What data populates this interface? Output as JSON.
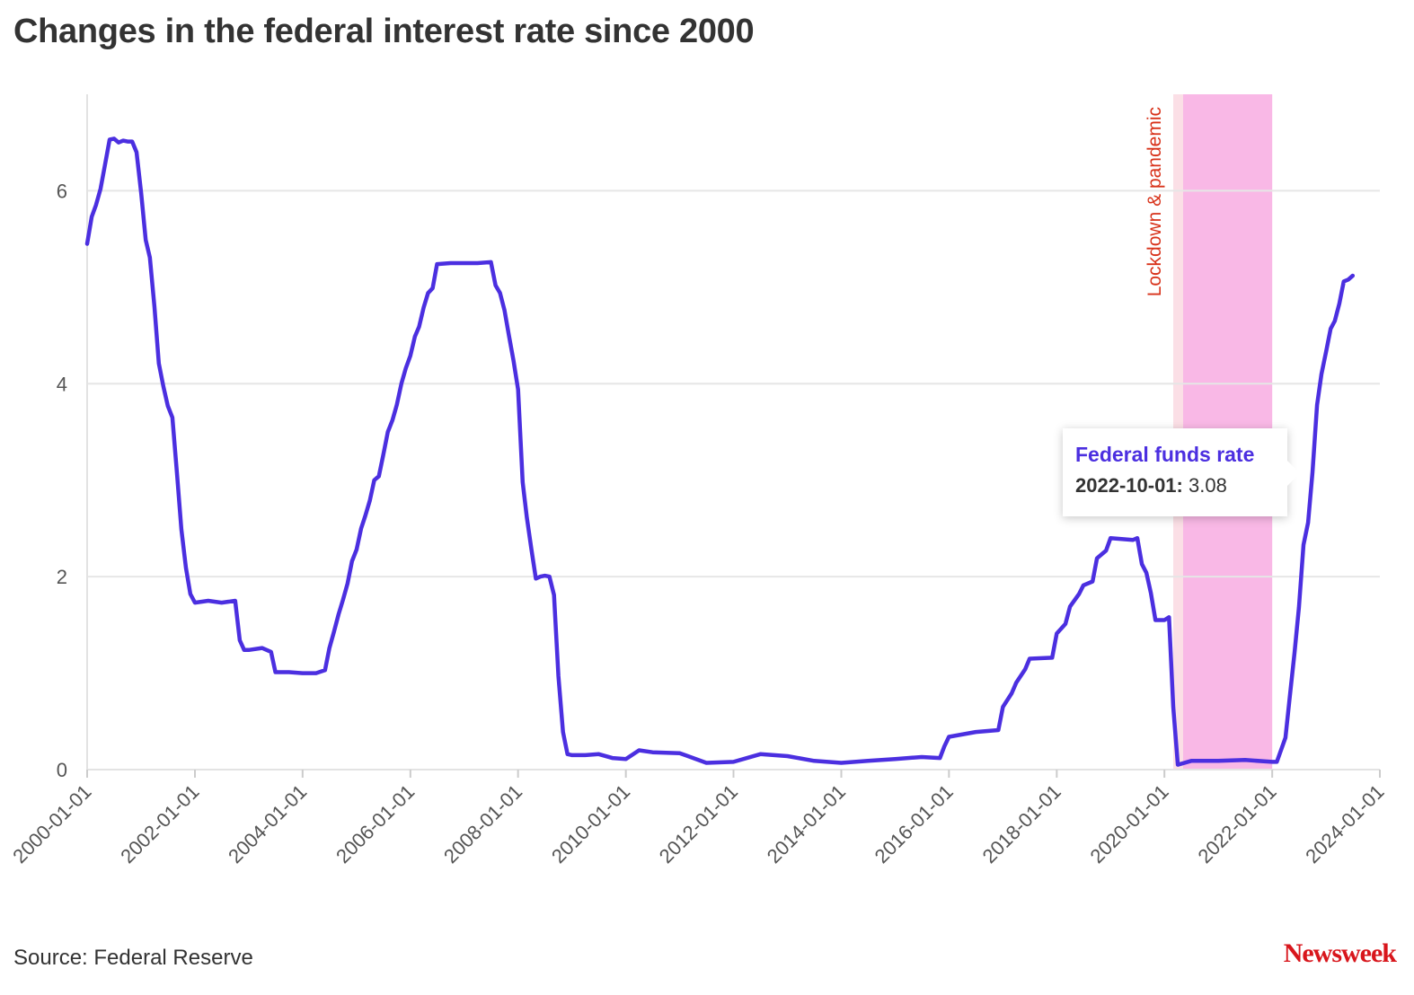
{
  "title": "Changes in the federal interest rate since 2000",
  "source": "Source: Federal Reserve",
  "logo": "Newsweek",
  "colors": {
    "line": "#4b2fe0",
    "band": "#f9b8e6",
    "annotation": "#d8321a",
    "grid": "#e6e6e6"
  },
  "tooltip": {
    "series": "Federal funds rate",
    "date": "2022-10-01:",
    "value": "3.08"
  },
  "chart_data": {
    "type": "line",
    "title": "Changes in the federal interest rate since 2000",
    "xlabel": "",
    "ylabel": "",
    "xlim": [
      "2000-01-01",
      "2024-01-01"
    ],
    "ylim": [
      0,
      7
    ],
    "y_ticks": [
      0,
      2,
      4,
      6
    ],
    "x_ticks": [
      "2000-01-01",
      "2002-01-01",
      "2004-01-01",
      "2006-01-01",
      "2008-01-01",
      "2010-01-01",
      "2012-01-01",
      "2014-01-01",
      "2016-01-01",
      "2018-01-01",
      "2020-01-01",
      "2022-01-01",
      "2024-01-01"
    ],
    "grid": "horizontal",
    "annotations": [
      {
        "type": "band",
        "label": "Lockdown & pandemic",
        "start": "2020-03-01",
        "end": "2022-01-01"
      }
    ],
    "series": [
      {
        "name": "Federal funds rate",
        "x": [
          "2000-01-01",
          "2000-02-01",
          "2000-03-01",
          "2000-04-01",
          "2000-05-01",
          "2000-06-01",
          "2000-07-01",
          "2000-08-01",
          "2000-09-01",
          "2000-10-01",
          "2000-11-01",
          "2000-12-01",
          "2001-01-01",
          "2001-02-01",
          "2001-03-01",
          "2001-04-01",
          "2001-05-01",
          "2001-06-01",
          "2001-07-01",
          "2001-08-01",
          "2001-09-01",
          "2001-10-01",
          "2001-11-01",
          "2001-12-01",
          "2002-01-01",
          "2002-04-01",
          "2002-07-01",
          "2002-10-01",
          "2002-11-01",
          "2002-12-01",
          "2003-01-01",
          "2003-04-01",
          "2003-06-01",
          "2003-07-01",
          "2003-10-01",
          "2004-01-01",
          "2004-04-01",
          "2004-06-01",
          "2004-07-01",
          "2004-08-01",
          "2004-09-01",
          "2004-10-01",
          "2004-11-01",
          "2004-12-01",
          "2005-01-01",
          "2005-02-01",
          "2005-03-01",
          "2005-04-01",
          "2005-05-01",
          "2005-06-01",
          "2005-07-01",
          "2005-08-01",
          "2005-09-01",
          "2005-10-01",
          "2005-11-01",
          "2005-12-01",
          "2006-01-01",
          "2006-02-01",
          "2006-03-01",
          "2006-04-01",
          "2006-05-01",
          "2006-06-01",
          "2006-07-01",
          "2006-10-01",
          "2007-01-01",
          "2007-04-01",
          "2007-07-01",
          "2007-08-01",
          "2007-09-01",
          "2007-10-01",
          "2007-11-01",
          "2007-12-01",
          "2008-01-01",
          "2008-02-01",
          "2008-03-01",
          "2008-04-01",
          "2008-05-01",
          "2008-06-01",
          "2008-07-01",
          "2008-08-01",
          "2008-09-01",
          "2008-10-01",
          "2008-11-01",
          "2008-12-01",
          "2009-01-01",
          "2009-04-01",
          "2009-07-01",
          "2009-10-01",
          "2010-01-01",
          "2010-04-01",
          "2010-07-01",
          "2011-01-01",
          "2011-07-01",
          "2012-01-01",
          "2012-07-01",
          "2013-01-01",
          "2013-07-01",
          "2014-01-01",
          "2014-07-01",
          "2015-01-01",
          "2015-07-01",
          "2015-11-01",
          "2015-12-01",
          "2016-01-01",
          "2016-07-01",
          "2016-12-01",
          "2017-01-01",
          "2017-03-01",
          "2017-04-01",
          "2017-06-01",
          "2017-07-01",
          "2017-12-01",
          "2018-01-01",
          "2018-03-01",
          "2018-04-01",
          "2018-06-01",
          "2018-07-01",
          "2018-09-01",
          "2018-10-01",
          "2018-12-01",
          "2019-01-01",
          "2019-06-01",
          "2019-07-01",
          "2019-08-01",
          "2019-09-01",
          "2019-10-01",
          "2019-11-01",
          "2020-01-01",
          "2020-02-01",
          "2020-03-01",
          "2020-04-01",
          "2020-07-01",
          "2021-01-01",
          "2021-07-01",
          "2022-01-01",
          "2022-02-01",
          "2022-03-01",
          "2022-04-01",
          "2022-05-01",
          "2022-06-01",
          "2022-07-01",
          "2022-08-01",
          "2022-09-01",
          "2022-10-01",
          "2022-11-01",
          "2022-12-01",
          "2023-01-01",
          "2023-02-01",
          "2023-03-01",
          "2023-04-01",
          "2023-05-01",
          "2023-06-01",
          "2023-07-01"
        ],
        "y": [
          5.45,
          5.73,
          5.85,
          6.02,
          6.27,
          6.53,
          6.54,
          6.5,
          6.52,
          6.51,
          6.51,
          6.4,
          5.98,
          5.49,
          5.31,
          4.8,
          4.21,
          3.97,
          3.77,
          3.65,
          3.07,
          2.49,
          2.09,
          1.82,
          1.73,
          1.75,
          1.73,
          1.75,
          1.34,
          1.24,
          1.24,
          1.26,
          1.22,
          1.01,
          1.01,
          1.0,
          1.0,
          1.03,
          1.26,
          1.43,
          1.61,
          1.76,
          1.93,
          2.16,
          2.28,
          2.5,
          2.63,
          2.79,
          3.0,
          3.04,
          3.26,
          3.5,
          3.62,
          3.78,
          4.0,
          4.16,
          4.29,
          4.49,
          4.59,
          4.79,
          4.94,
          4.99,
          5.24,
          5.25,
          5.25,
          5.25,
          5.26,
          5.02,
          4.94,
          4.76,
          4.49,
          4.24,
          3.94,
          2.98,
          2.61,
          2.28,
          1.98,
          2.0,
          2.01,
          2.0,
          1.81,
          0.97,
          0.39,
          0.16,
          0.15,
          0.15,
          0.16,
          0.12,
          0.11,
          0.2,
          0.18,
          0.17,
          0.07,
          0.08,
          0.16,
          0.14,
          0.09,
          0.07,
          0.09,
          0.11,
          0.13,
          0.12,
          0.24,
          0.34,
          0.39,
          0.41,
          0.65,
          0.79,
          0.9,
          1.04,
          1.15,
          1.16,
          1.41,
          1.51,
          1.69,
          1.82,
          1.91,
          1.95,
          2.19,
          2.27,
          2.4,
          2.38,
          2.4,
          2.13,
          2.04,
          1.83,
          1.55,
          1.55,
          1.58,
          0.65,
          0.05,
          0.09,
          0.09,
          0.1,
          0.08,
          0.08,
          0.2,
          0.33,
          0.77,
          1.21,
          1.68,
          2.33,
          2.56,
          3.08,
          3.78,
          4.1,
          4.33,
          4.57,
          4.65,
          4.83,
          5.06,
          5.08,
          5.12
        ]
      }
    ]
  }
}
